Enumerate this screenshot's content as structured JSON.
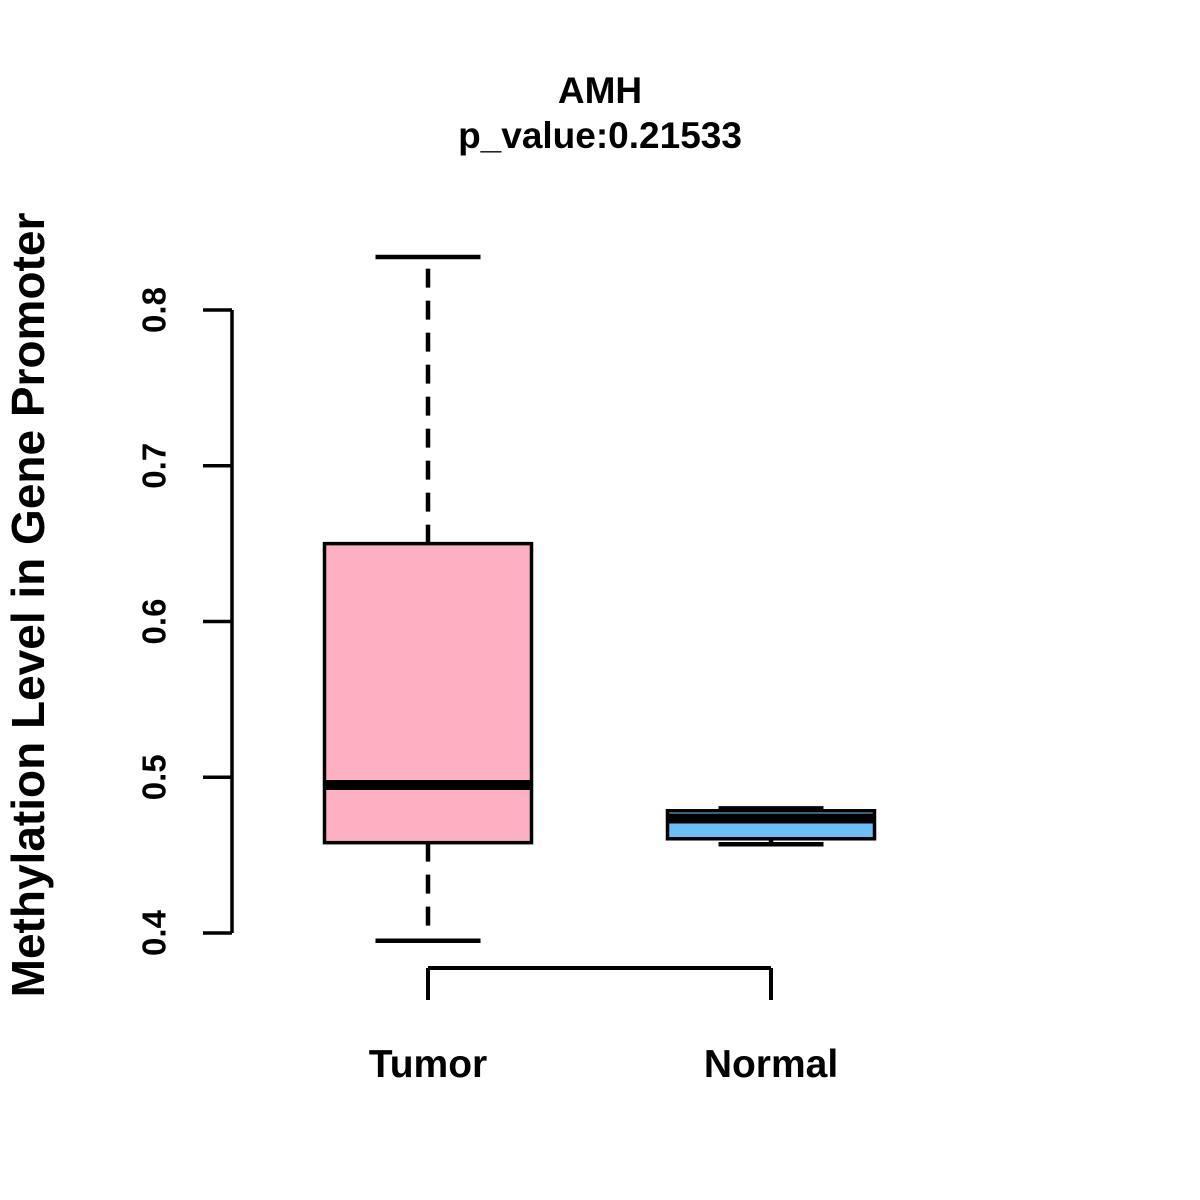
{
  "chart_data": {
    "type": "boxplot",
    "title": "AMH",
    "subtitle": "p_value:0.21533",
    "ylabel": "Methylation Level in Gene Promoter",
    "xlabel": "",
    "categories": [
      "Tumor",
      "Normal"
    ],
    "ylim": [
      0.4,
      0.8
    ],
    "yticks": [
      0.4,
      0.5,
      0.6,
      0.7,
      0.8
    ],
    "grid": false,
    "legend": "none",
    "series": [
      {
        "name": "Tumor",
        "color": "#FCB0C1",
        "lower_whisker": 0.395,
        "q1": 0.458,
        "median": 0.495,
        "q3": 0.65,
        "upper_whisker": 0.834
      },
      {
        "name": "Normal",
        "color": "#6EBEF5",
        "lower_whisker": 0.457,
        "q1": 0.4605,
        "median": 0.4735,
        "q3": 0.4785,
        "upper_whisker": 0.48
      }
    ],
    "colors": {
      "stroke": "#000000",
      "background": "#ffffff"
    }
  }
}
